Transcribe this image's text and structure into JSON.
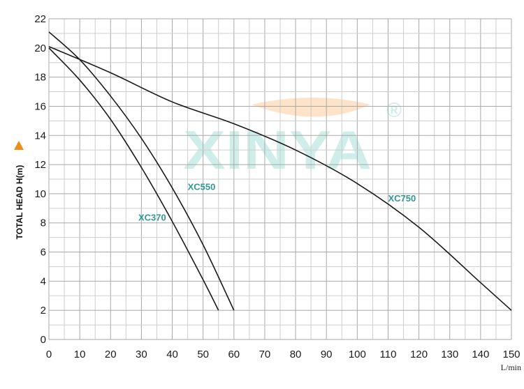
{
  "chart_data": {
    "type": "line",
    "xlabel": "L/min",
    "ylabel": "TOTAL HEAD H(m)",
    "xlim": [
      0,
      150
    ],
    "ylim": [
      0,
      22
    ],
    "xticks": [
      0,
      10,
      20,
      30,
      40,
      50,
      60,
      70,
      80,
      90,
      100,
      110,
      120,
      130,
      140,
      150
    ],
    "yticks": [
      0,
      2,
      4,
      6,
      8,
      10,
      12,
      14,
      16,
      18,
      20,
      22
    ],
    "grid": true,
    "line_color": "#1a1a1a",
    "label_color": "#2e9a92",
    "axis_marker_color": "#e8901a",
    "series": [
      {
        "name": "XC370",
        "label_at": [
          29,
          8.4
        ],
        "points": [
          [
            0,
            20
          ],
          [
            10,
            17.8
          ],
          [
            20,
            15.1
          ],
          [
            30,
            11.8
          ],
          [
            40,
            8.1
          ],
          [
            50,
            4.1
          ],
          [
            55,
            2
          ]
        ]
      },
      {
        "name": "XC550",
        "label_at": [
          45,
          10.5
        ],
        "points": [
          [
            0,
            21.1
          ],
          [
            10,
            19.2
          ],
          [
            20,
            16.7
          ],
          [
            30,
            13.8
          ],
          [
            40,
            10.4
          ],
          [
            50,
            6.5
          ],
          [
            60,
            2
          ]
        ]
      },
      {
        "name": "XC750",
        "label_at": [
          110,
          9.7
        ],
        "points": [
          [
            0,
            20.1
          ],
          [
            20,
            18.3
          ],
          [
            40,
            16.3
          ],
          [
            60,
            14.8
          ],
          [
            80,
            13
          ],
          [
            100,
            10.7
          ],
          [
            120,
            7.7
          ],
          [
            140,
            3.9
          ],
          [
            150,
            2
          ]
        ]
      }
    ]
  },
  "watermark": {
    "text": "XINYA",
    "registered_mark": "®",
    "text_color": "#cfeee9",
    "arc_color": "#fde3c8"
  }
}
